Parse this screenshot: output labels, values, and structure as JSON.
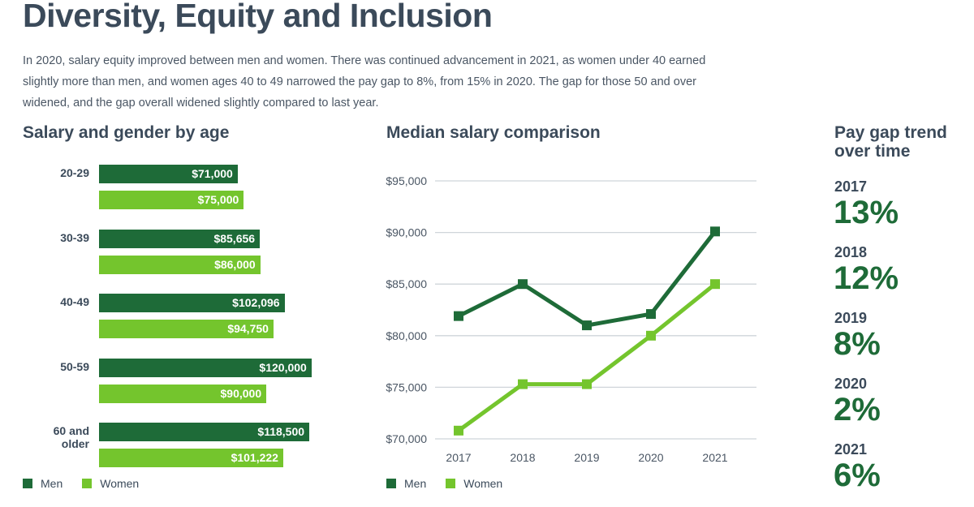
{
  "title": "Diversity, Equity and Inclusion",
  "intro": "In 2020, salary equity improved between men and women. There was continued advancement in 2021, as women under 40 earned slightly more than men, and women ages 40 to 49 narrowed the pay gap to 8%, from 15% in 2020. The gap for those 50 and over widened, and the gap overall widened slightly compared to last year.",
  "colors": {
    "men": "#1e6b38",
    "women": "#74c52d"
  },
  "chart_data": [
    {
      "type": "bar",
      "title": "Salary and gender by age",
      "categories": [
        "20-29",
        "30-39",
        "40-49",
        "50-59",
        "60 and older"
      ],
      "series": [
        {
          "name": "Men",
          "values": [
            71000,
            85656,
            102096,
            120000,
            118500
          ],
          "labels": [
            "$71,000",
            "$85,656",
            "$102,096",
            "$120,000",
            "$118,500"
          ]
        },
        {
          "name": "Women",
          "values": [
            75000,
            86000,
            94750,
            90000,
            101222
          ],
          "labels": [
            "$75,000",
            "$86,000",
            "$94,750",
            "$90,000",
            "$101,222"
          ]
        }
      ],
      "legend": "bottom-left"
    },
    {
      "type": "line",
      "title": "Median salary comparison",
      "x": [
        "2017",
        "2018",
        "2019",
        "2020",
        "2021"
      ],
      "ylim": [
        70000,
        95000
      ],
      "yticks": [
        "$70,000",
        "$75,000",
        "$80,000",
        "$85,000",
        "$90,000",
        "$95,000"
      ],
      "grid": true,
      "series": [
        {
          "name": "Men",
          "values": [
            81900,
            85000,
            81000,
            82100,
            90100
          ]
        },
        {
          "name": "Women",
          "values": [
            70800,
            75300,
            75300,
            80000,
            85000
          ]
        }
      ],
      "legend": "bottom-left"
    }
  ],
  "trend": {
    "title_1": "Pay gap trend",
    "title_2": "over time",
    "items": [
      {
        "year": "2017",
        "value": "13%"
      },
      {
        "year": "2018",
        "value": "12%"
      },
      {
        "year": "2019",
        "value": "8%"
      },
      {
        "year": "2020",
        "value": "2%"
      },
      {
        "year": "2021",
        "value": "6%"
      }
    ]
  }
}
